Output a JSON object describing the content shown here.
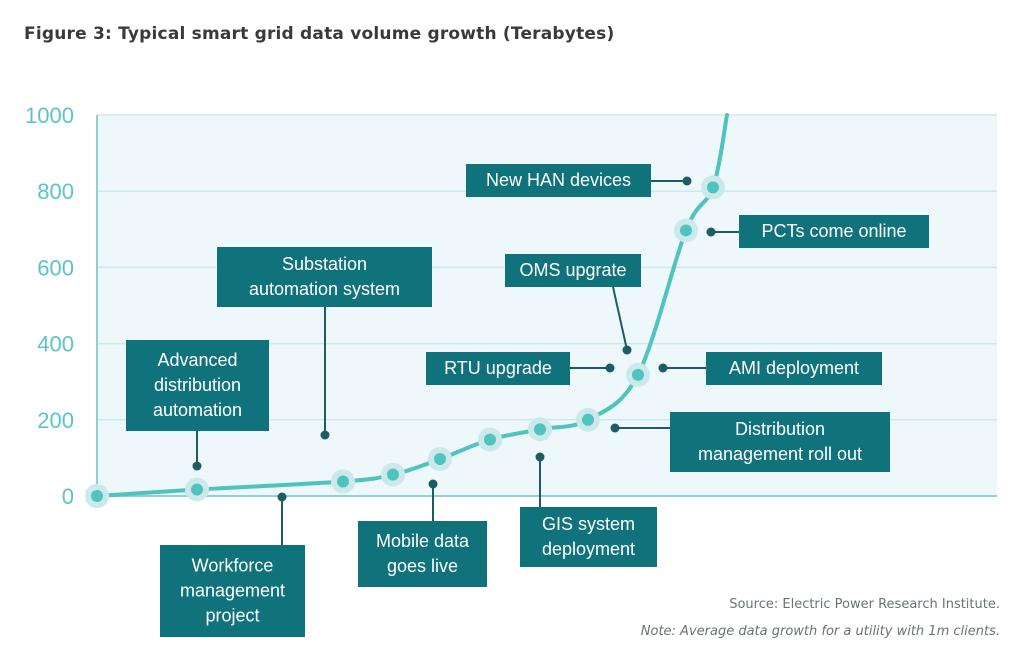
{
  "figure": {
    "title": "Figure 3: Typical smart grid data volume growth (Terabytes)",
    "source": "Source: Electric Power Research Institute.",
    "note": "Note: Average data growth for a utility with 1m clients."
  },
  "colors": {
    "plot_background": "#eef8fa",
    "grid": "#cfe8ec",
    "axis": "#8fd0d4",
    "line": "#4fc3bd",
    "tick_text": "#5bc4c8",
    "label_box": "#10727a",
    "label_text": "#ffffff",
    "connector": "#1c5c62",
    "marker_halo": "#cbe9ea"
  },
  "chart_data": {
    "type": "line",
    "title": "Typical smart grid data volume growth (Terabytes)",
    "xlabel": "",
    "ylabel": "",
    "ylim": [
      0,
      1000
    ],
    "y_ticks": [
      0,
      200,
      400,
      600,
      800,
      1000
    ],
    "grid": true,
    "legend": "none",
    "series": [
      {
        "values": [
          0,
          17,
          38,
          56,
          97,
          148,
          175,
          200,
          318,
          697,
          810,
          1000
        ]
      }
    ],
    "markers": [
      0,
      17,
      38,
      56,
      97,
      148,
      175,
      200,
      318,
      697,
      810
    ],
    "annotations": [
      "Advanced distribution automation",
      "Workforce management project",
      "Substation automation system",
      "Mobile data goes live",
      "GIS system deployment",
      "Distribution management roll out",
      "RTU upgrade",
      "OMS upgrate",
      "AMI deployment",
      "New HAN devices",
      "PCTs come online"
    ]
  }
}
